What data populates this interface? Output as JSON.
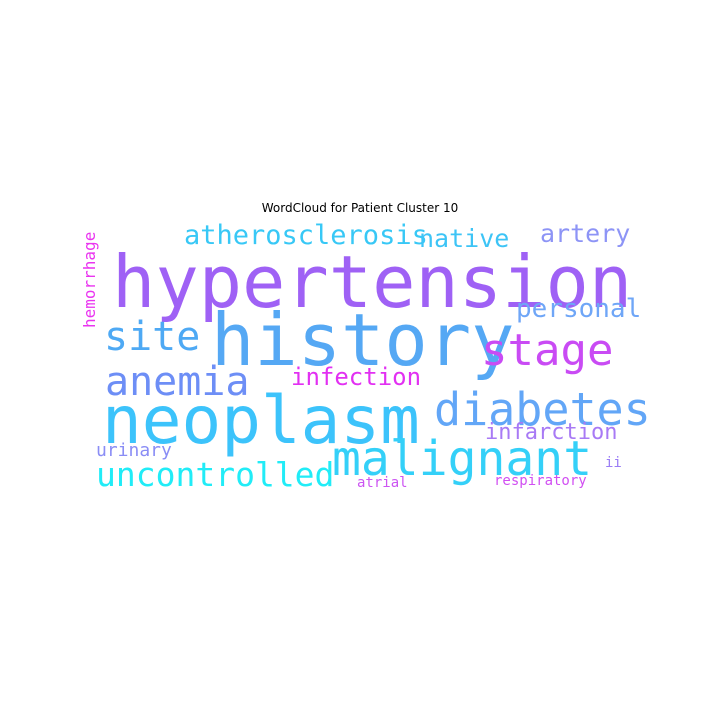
{
  "title": "WordCloud for Patient Cluster 10",
  "words": [
    {
      "text": "hypertension",
      "color": "#9f61f5"
    },
    {
      "text": "history",
      "color": "#55a8f4"
    },
    {
      "text": "neoplasm",
      "color": "#3cc3fb"
    },
    {
      "text": "malignant",
      "color": "#34d0f8"
    },
    {
      "text": "diabetes",
      "color": "#62a6f7"
    },
    {
      "text": "stage",
      "color": "#c94bf4"
    },
    {
      "text": "anemia",
      "color": "#6d8ef6"
    },
    {
      "text": "site",
      "color": "#4ea9f4"
    },
    {
      "text": "uncontrolled",
      "color": "#21ecf7"
    },
    {
      "text": "atherosclerosis",
      "color": "#38c8f6"
    },
    {
      "text": "native",
      "color": "#3dc4f6"
    },
    {
      "text": "artery",
      "color": "#8d94f6"
    },
    {
      "text": "personal",
      "color": "#6fa6f7"
    },
    {
      "text": "infection",
      "color": "#e230f2"
    },
    {
      "text": "infarction",
      "color": "#a87af5"
    },
    {
      "text": "urinary",
      "color": "#8a8df5"
    },
    {
      "text": "atrial",
      "color": "#cc55f2"
    },
    {
      "text": "respiratory",
      "color": "#d14ff2"
    },
    {
      "text": "ii",
      "color": "#9a7df5"
    },
    {
      "text": "hemorrhage",
      "color": "#ea34f0"
    }
  ]
}
